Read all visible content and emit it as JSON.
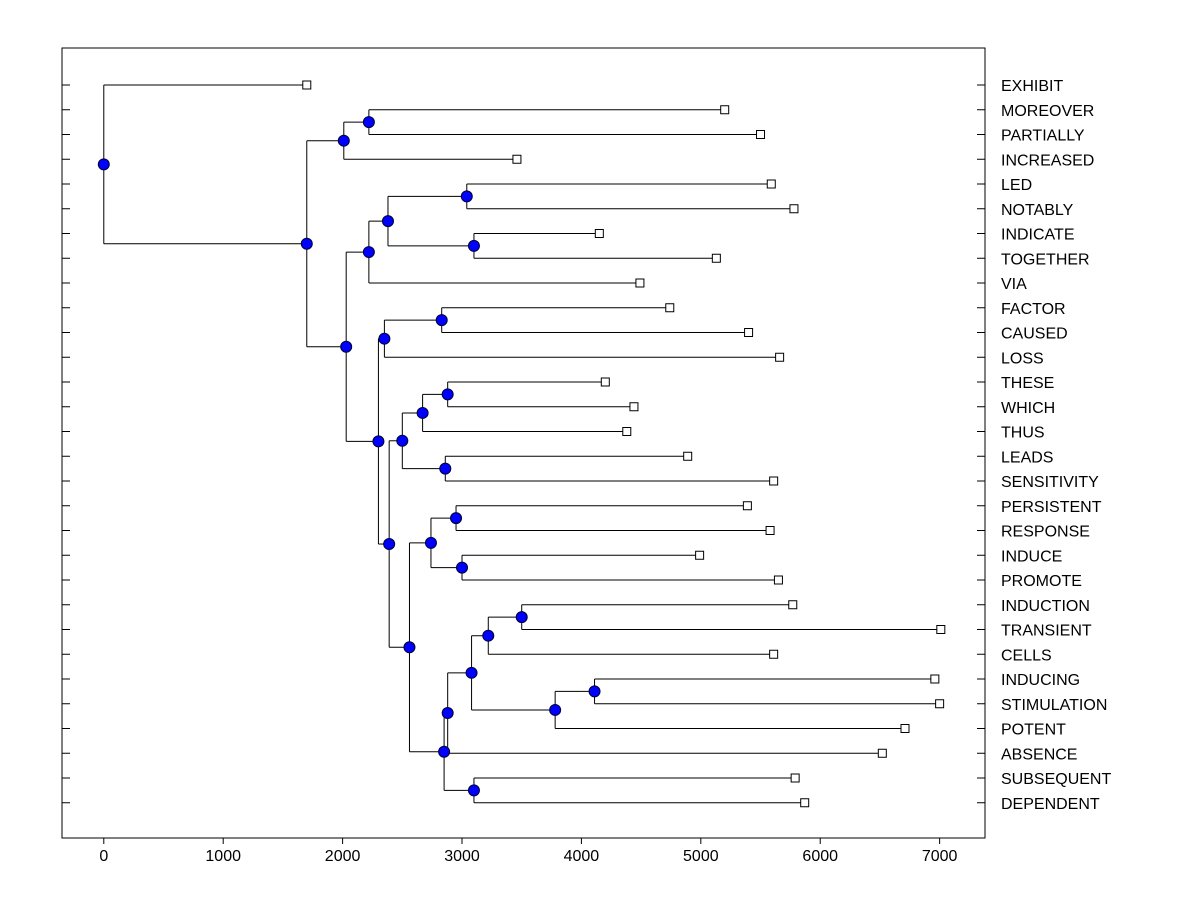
{
  "chart_data": {
    "type": "dendrogram",
    "orientation": "horizontal",
    "x_ticks": [
      0,
      1000,
      2000,
      3000,
      4000,
      5000,
      6000,
      7000
    ],
    "xlim": [
      -350,
      7380
    ],
    "colors": {
      "node": "#0000ff",
      "line": "#000000",
      "leaf_fill": "#ffffff"
    },
    "leaves": [
      {
        "label": "EXHIBIT",
        "value": 1700
      },
      {
        "label": "MOREOVER",
        "value": 5200
      },
      {
        "label": "PARTIALLY",
        "value": 5500
      },
      {
        "label": "INCREASED",
        "value": 3460
      },
      {
        "label": "LED",
        "value": 5590
      },
      {
        "label": "NOTABLY",
        "value": 5780
      },
      {
        "label": "INDICATE",
        "value": 4150
      },
      {
        "label": "TOGETHER",
        "value": 5130
      },
      {
        "label": "VIA",
        "value": 4490
      },
      {
        "label": "FACTOR",
        "value": 4740
      },
      {
        "label": "CAUSED",
        "value": 5400
      },
      {
        "label": "LOSS",
        "value": 5660
      },
      {
        "label": "THESE",
        "value": 4200
      },
      {
        "label": "WHICH",
        "value": 4440
      },
      {
        "label": "THUS",
        "value": 4380
      },
      {
        "label": "LEADS",
        "value": 4890
      },
      {
        "label": "SENSITIVITY",
        "value": 5610
      },
      {
        "label": "PERSISTENT",
        "value": 5390
      },
      {
        "label": "RESPONSE",
        "value": 5580
      },
      {
        "label": "INDUCE",
        "value": 4990
      },
      {
        "label": "PROMOTE",
        "value": 5650
      },
      {
        "label": "INDUCTION",
        "value": 5770
      },
      {
        "label": "TRANSIENT",
        "value": 7010
      },
      {
        "label": "CELLS",
        "value": 5610
      },
      {
        "label": "INDUCING",
        "value": 6960
      },
      {
        "label": "STIMULATION",
        "value": 7000
      },
      {
        "label": "POTENT",
        "value": 6710
      },
      {
        "label": "ABSENCE",
        "value": 6520
      },
      {
        "label": "SUBSEQUENT",
        "value": 5790
      },
      {
        "label": "DEPENDENT",
        "value": 5870
      }
    ],
    "nodes": [
      {
        "id": "n_moreover_partially",
        "value": 2220,
        "children": [
          "MOREOVER",
          "PARTIALLY"
        ]
      },
      {
        "id": "n_moreover_increased",
        "value": 2010,
        "children": [
          "n_moreover_partially",
          "INCREASED"
        ]
      },
      {
        "id": "n_led_notably",
        "value": 3040,
        "children": [
          "LED",
          "NOTABLY"
        ]
      },
      {
        "id": "n_indicate_together",
        "value": 3100,
        "children": [
          "INDICATE",
          "TOGETHER"
        ]
      },
      {
        "id": "n_led_together",
        "value": 2380,
        "children": [
          "n_led_notably",
          "n_indicate_together"
        ]
      },
      {
        "id": "n_led_via",
        "value": 2220,
        "children": [
          "n_led_together",
          "VIA"
        ]
      },
      {
        "id": "n_factor_caused",
        "value": 2830,
        "children": [
          "FACTOR",
          "CAUSED"
        ]
      },
      {
        "id": "n_factor_loss",
        "value": 2350,
        "children": [
          "n_factor_caused",
          "LOSS"
        ]
      },
      {
        "id": "n_these_which",
        "value": 2880,
        "children": [
          "THESE",
          "WHICH"
        ]
      },
      {
        "id": "n_these_thus",
        "value": 2670,
        "children": [
          "n_these_which",
          "THUS"
        ]
      },
      {
        "id": "n_leads_sensitivity",
        "value": 2860,
        "children": [
          "LEADS",
          "SENSITIVITY"
        ]
      },
      {
        "id": "n_these_sensitivity",
        "value": 2500,
        "children": [
          "n_these_thus",
          "n_leads_sensitivity"
        ]
      },
      {
        "id": "n_persistent_response",
        "value": 2950,
        "children": [
          "PERSISTENT",
          "RESPONSE"
        ]
      },
      {
        "id": "n_induce_promote",
        "value": 3000,
        "children": [
          "INDUCE",
          "PROMOTE"
        ]
      },
      {
        "id": "n_persistent_promote",
        "value": 2740,
        "children": [
          "n_persistent_response",
          "n_induce_promote"
        ]
      },
      {
        "id": "n_induction_transient",
        "value": 3500,
        "children": [
          "INDUCTION",
          "TRANSIENT"
        ]
      },
      {
        "id": "n_induction_cells",
        "value": 3220,
        "children": [
          "n_induction_transient",
          "CELLS"
        ]
      },
      {
        "id": "n_inducing_stimulation",
        "value": 4110,
        "children": [
          "INDUCING",
          "STIMULATION"
        ]
      },
      {
        "id": "n_inducing_potent",
        "value": 3780,
        "children": [
          "n_inducing_stimulation",
          "POTENT"
        ]
      },
      {
        "id": "n_induction_potent",
        "value": 3080,
        "children": [
          "n_induction_cells",
          "n_inducing_potent"
        ]
      },
      {
        "id": "n_induction_absence",
        "value": 2880,
        "children": [
          "n_induction_potent",
          "ABSENCE"
        ]
      },
      {
        "id": "n_subsequent_dependent",
        "value": 3100,
        "children": [
          "SUBSEQUENT",
          "DEPENDENT"
        ]
      },
      {
        "id": "n_induction_dependent",
        "value": 2850,
        "children": [
          "n_induction_absence",
          "n_subsequent_dependent"
        ]
      },
      {
        "id": "n_persistent_dependent",
        "value": 2560,
        "children": [
          "n_persistent_promote",
          "n_induction_dependent"
        ]
      },
      {
        "id": "n_these_dependent",
        "value": 2390,
        "children": [
          "n_these_sensitivity",
          "n_persistent_dependent"
        ]
      },
      {
        "id": "n_factor_dependent",
        "value": 2300,
        "children": [
          "n_factor_loss",
          "n_these_dependent"
        ]
      },
      {
        "id": "n_led_dependent",
        "value": 2030,
        "children": [
          "n_led_via",
          "n_factor_dependent"
        ]
      },
      {
        "id": "n_moreover_dependent",
        "value": 1700,
        "children": [
          "n_moreover_increased",
          "n_led_dependent"
        ]
      },
      {
        "id": "root",
        "value": 0,
        "children": [
          "EXHIBIT",
          "n_moreover_dependent"
        ]
      }
    ]
  }
}
